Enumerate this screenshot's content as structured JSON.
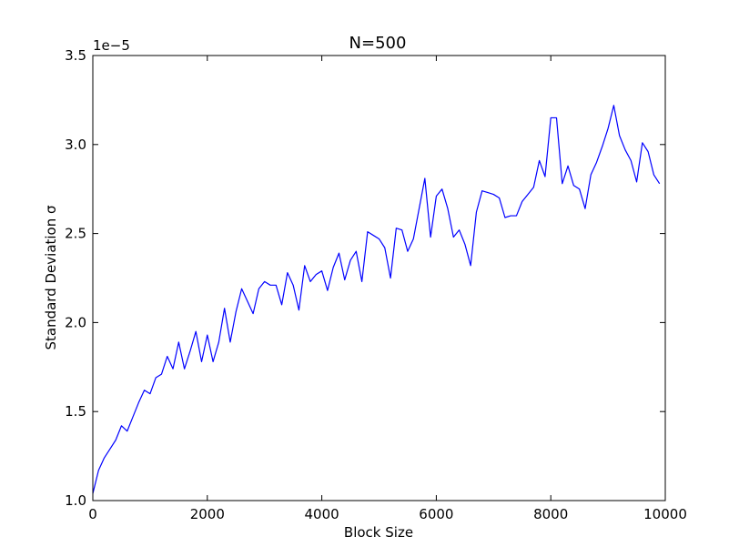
{
  "chart_data": {
    "type": "line",
    "title": "N=500",
    "xlabel": "Block Size",
    "ylabel": "Standard Deviation σ",
    "y_offset_label": "1e−5",
    "xlim": [
      0,
      10000
    ],
    "ylim": [
      1.0,
      3.5
    ],
    "x_ticks": [
      0,
      2000,
      4000,
      6000,
      8000,
      10000
    ],
    "x_tick_labels": [
      "0",
      "2000",
      "4000",
      "6000",
      "8000",
      "10000"
    ],
    "y_ticks": [
      1.0,
      1.5,
      2.0,
      2.5,
      3.0,
      3.5
    ],
    "y_tick_labels": [
      "1.0",
      "1.5",
      "2.0",
      "2.5",
      "3.0",
      "3.5"
    ],
    "grid": false,
    "line_color": "#0000ff",
    "series": [
      {
        "x": [
          0,
          100,
          200,
          300,
          400,
          500,
          600,
          700,
          800,
          900,
          1000,
          1100,
          1200,
          1300,
          1400,
          1500,
          1600,
          1700,
          1800,
          1900,
          2000,
          2100,
          2200,
          2300,
          2400,
          2500,
          2600,
          2700,
          2800,
          2900,
          3000,
          3100,
          3200,
          3300,
          3400,
          3500,
          3600,
          3700,
          3800,
          3900,
          4000,
          4100,
          4200,
          4300,
          4400,
          4500,
          4600,
          4700,
          4800,
          4900,
          5000,
          5100,
          5200,
          5300,
          5400,
          5500,
          5600,
          5700,
          5800,
          5900,
          6000,
          6100,
          6200,
          6300,
          6400,
          6500,
          6600,
          6700,
          6800,
          6900,
          7000,
          7100,
          7200,
          7300,
          7400,
          7500,
          7600,
          7700,
          7800,
          7900,
          8000,
          8100,
          8200,
          8300,
          8400,
          8500,
          8600,
          8700,
          8800,
          8900,
          9000,
          9100,
          9200,
          9300,
          9400,
          9500,
          9600,
          9700,
          9800,
          9900
        ],
        "values": [
          1.04,
          1.17,
          1.24,
          1.29,
          1.34,
          1.42,
          1.39,
          1.47,
          1.55,
          1.62,
          1.6,
          1.69,
          1.71,
          1.81,
          1.74,
          1.89,
          1.74,
          1.84,
          1.95,
          1.78,
          1.93,
          1.78,
          1.89,
          2.08,
          1.89,
          2.06,
          2.19,
          2.12,
          2.05,
          2.19,
          2.23,
          2.21,
          2.21,
          2.1,
          2.28,
          2.21,
          2.07,
          2.32,
          2.23,
          2.27,
          2.29,
          2.18,
          2.31,
          2.39,
          2.24,
          2.35,
          2.4,
          2.23,
          2.51,
          2.49,
          2.47,
          2.42,
          2.25,
          2.53,
          2.52,
          2.4,
          2.47,
          2.64,
          2.81,
          2.48,
          2.71,
          2.75,
          2.64,
          2.48,
          2.52,
          2.44,
          2.32,
          2.62,
          2.74,
          2.73,
          2.72,
          2.7,
          2.59,
          2.6,
          2.6,
          2.68,
          2.72,
          2.76,
          2.91,
          2.82,
          3.15,
          3.15,
          2.78,
          2.88,
          2.77,
          2.75,
          2.64,
          2.83,
          2.9,
          2.99,
          3.09,
          3.22,
          3.05,
          2.97,
          2.91,
          2.79,
          3.01,
          2.96,
          2.83,
          2.78
        ]
      }
    ]
  }
}
